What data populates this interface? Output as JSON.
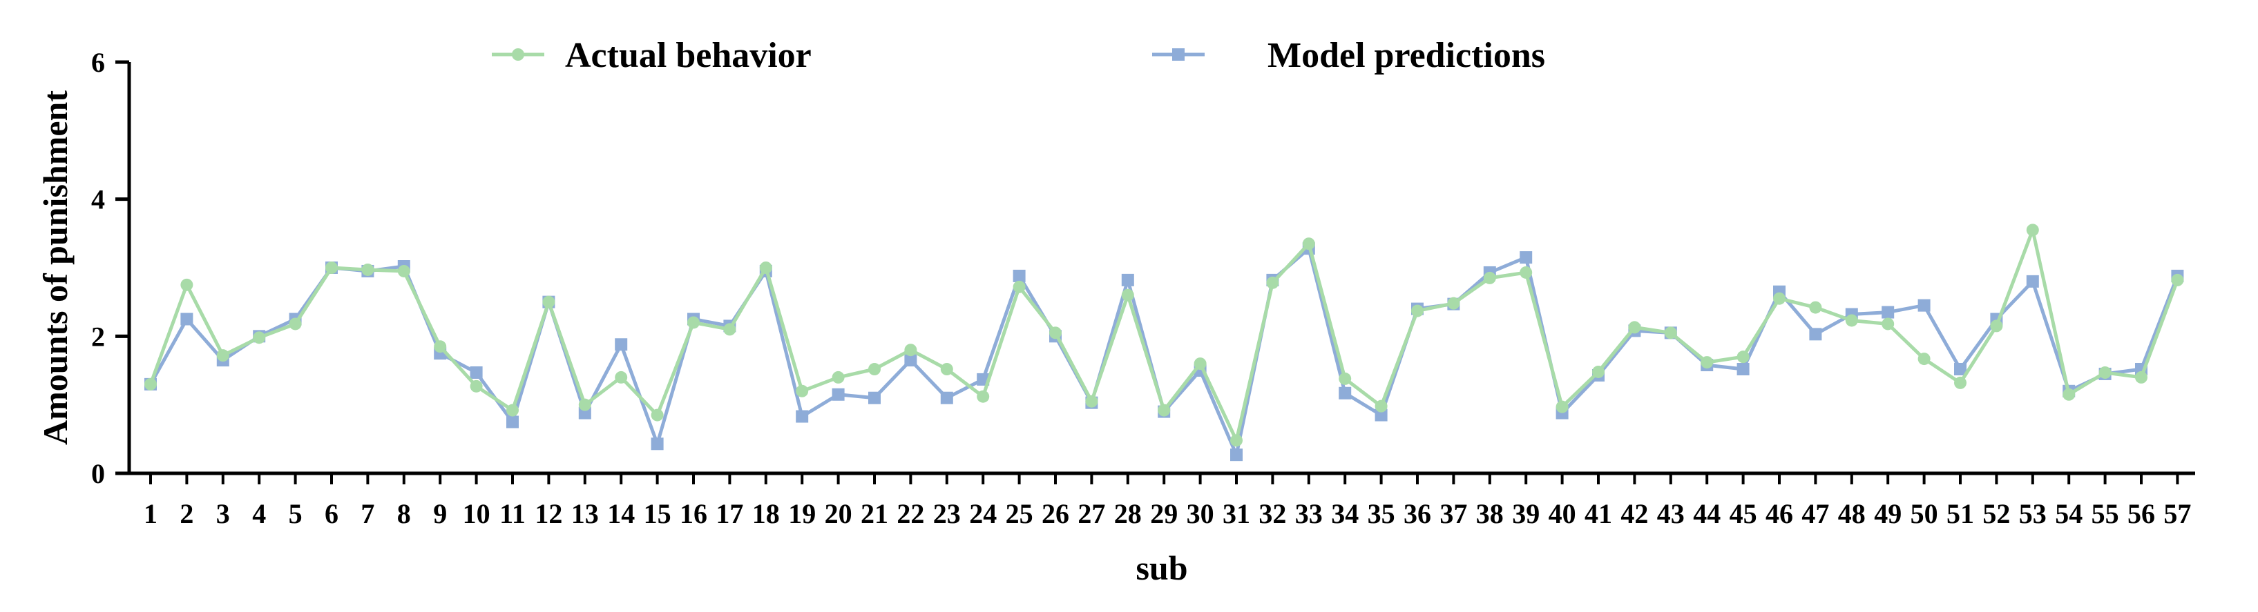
{
  "chart_data": {
    "type": "line",
    "xlabel": "sub",
    "ylabel": "Amounts of punishment",
    "ylim": [
      0,
      6
    ],
    "yticks": [
      0,
      2,
      4,
      6
    ],
    "categories": [
      "1",
      "2",
      "3",
      "4",
      "5",
      "6",
      "7",
      "8",
      "9",
      "10",
      "11",
      "12",
      "13",
      "14",
      "15",
      "16",
      "17",
      "18",
      "19",
      "20",
      "21",
      "22",
      "23",
      "24",
      "25",
      "26",
      "27",
      "28",
      "29",
      "30",
      "31",
      "32",
      "33",
      "34",
      "35",
      "36",
      "37",
      "38",
      "39",
      "40",
      "41",
      "42",
      "43",
      "44",
      "45",
      "46",
      "47",
      "48",
      "49",
      "50",
      "51",
      "52",
      "53",
      "54",
      "55",
      "56",
      "57"
    ],
    "legend_position": "top",
    "grid": false,
    "series": [
      {
        "name": "Actual behavior",
        "color": "#a8dba8",
        "marker": "circle",
        "values": [
          1.3,
          2.75,
          1.72,
          1.98,
          2.18,
          3.0,
          2.97,
          2.95,
          1.85,
          1.27,
          0.92,
          2.5,
          1.0,
          1.4,
          0.85,
          2.2,
          2.1,
          3.0,
          1.2,
          1.4,
          1.52,
          1.8,
          1.52,
          1.12,
          2.72,
          2.05,
          1.05,
          2.6,
          0.92,
          1.6,
          0.48,
          2.78,
          3.35,
          1.38,
          0.98,
          2.37,
          2.48,
          2.85,
          2.93,
          0.97,
          1.48,
          2.13,
          2.05,
          1.62,
          1.7,
          2.55,
          2.42,
          2.23,
          2.18,
          1.67,
          1.32,
          2.15,
          3.55,
          1.15,
          1.47,
          1.4,
          2.82
        ]
      },
      {
        "name": "Model predictions",
        "color": "#8eacd8",
        "marker": "square",
        "values": [
          1.3,
          2.25,
          1.65,
          2.0,
          2.25,
          3.0,
          2.95,
          3.02,
          1.75,
          1.47,
          0.75,
          2.5,
          0.88,
          1.88,
          0.43,
          2.25,
          2.15,
          2.95,
          0.83,
          1.15,
          1.1,
          1.65,
          1.1,
          1.37,
          2.88,
          2.0,
          1.03,
          2.82,
          0.9,
          1.5,
          0.27,
          2.82,
          3.28,
          1.17,
          0.85,
          2.4,
          2.47,
          2.93,
          3.15,
          0.88,
          1.43,
          2.08,
          2.05,
          1.58,
          1.52,
          2.65,
          2.03,
          2.32,
          2.35,
          2.45,
          1.52,
          2.25,
          2.8,
          1.2,
          1.45,
          1.52,
          2.88
        ]
      }
    ]
  }
}
